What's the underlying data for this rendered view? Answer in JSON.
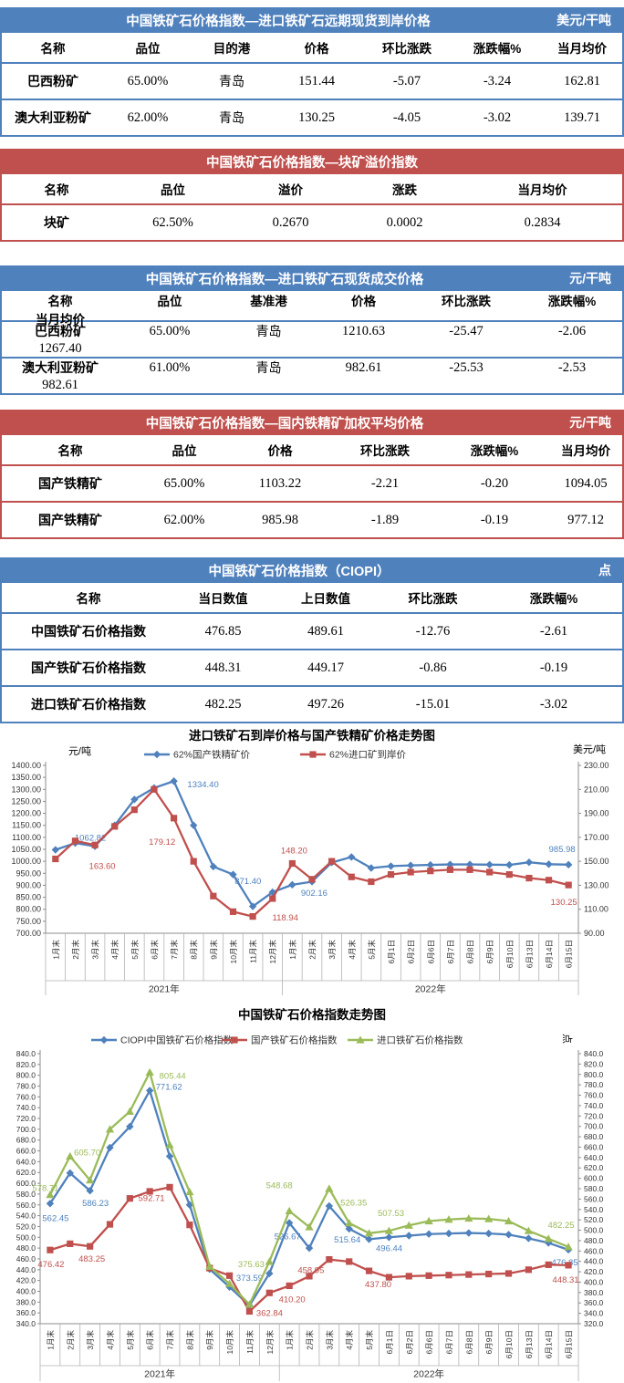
{
  "tables": [
    {
      "theme": "blue",
      "title": "中国铁矿石价格指数—进口铁矿石远期现货到岸价格",
      "unit": "美元/干吨",
      "columns": [
        "名称",
        "品位",
        "目的港",
        "价格",
        "环比涨跌",
        "涨跌幅%",
        "当月均价"
      ],
      "rows": [
        [
          "巴西粉矿",
          "65.00%",
          "青岛",
          "151.44",
          "-5.07",
          "-3.24",
          "162.81"
        ],
        [
          "澳大利亚粉矿",
          "62.00%",
          "青岛",
          "130.25",
          "-4.05",
          "-3.02",
          "139.71"
        ]
      ]
    },
    {
      "theme": "red",
      "title": "中国铁矿石价格指数—块矿溢价指数",
      "unit": "",
      "columns": [
        "名称",
        "品位",
        "溢价",
        "涨跌",
        "当月均价"
      ],
      "rows": [
        [
          "块矿",
          "62.50%",
          "0.2670",
          "0.0002",
          "0.2834"
        ]
      ]
    },
    {
      "theme": "blue",
      "title": "中国铁矿石价格指数—进口铁矿石现货成交价格",
      "unit": "元/干吨",
      "columns": [
        "名称",
        "品位",
        "基准港",
        "价格",
        "环比涨跌",
        "涨跌幅%",
        "当月均价"
      ],
      "rows": [
        [
          "巴西粉矿",
          "65.00%",
          "青岛",
          "1210.63",
          "-25.47",
          "-2.06",
          "1267.40"
        ],
        [
          "澳大利亚粉矿",
          "61.00%",
          "青岛",
          "982.61",
          "-25.53",
          "-2.53",
          "982.61"
        ]
      ]
    },
    {
      "theme": "red",
      "title": "中国铁矿石价格指数—国内铁精矿加权平均价格",
      "unit": "元/干吨",
      "columns": [
        "名称",
        "品位",
        "价格",
        "环比涨跌",
        "涨跌幅%",
        "当月均价"
      ],
      "rows": [
        [
          "国产铁精矿",
          "65.00%",
          "1103.22",
          "-2.21",
          "-0.20",
          "1094.05"
        ],
        [
          "国产铁精矿",
          "62.00%",
          "985.98",
          "-1.89",
          "-0.19",
          "977.12"
        ]
      ]
    },
    {
      "theme": "blue",
      "title": "中国铁矿石价格指数（CIOPI）",
      "unit": "点",
      "columns": [
        "名称",
        "当日数值",
        "上日数值",
        "环比涨跌",
        "涨跌幅%"
      ],
      "rows": [
        [
          "中国铁矿石价格指数",
          "476.85",
          "489.61",
          "-12.76",
          "-2.61"
        ],
        [
          "国产铁矿石价格指数",
          "448.31",
          "449.17",
          "-0.86",
          "-0.19"
        ],
        [
          "进口铁矿石价格指数",
          "482.25",
          "497.26",
          "-15.01",
          "-3.02"
        ]
      ]
    }
  ],
  "chart_data": [
    {
      "type": "line",
      "title": "进口铁矿石到岸价格与国产铁精矿价格走势图",
      "unit_left": "元/吨",
      "unit_right": "美元/吨",
      "unit_right_rotated": "",
      "legend_position": "top",
      "grid": false,
      "categories": [
        "1月末",
        "2月末",
        "3月末",
        "4月末",
        "5月末",
        "6月末",
        "7月末",
        "8月末",
        "9月末",
        "10月末",
        "11月末",
        "12月末",
        "1月末",
        "2月末",
        "3月末",
        "4月末",
        "5月末",
        "6月1日",
        "6月2日",
        "6月6日",
        "6月7日",
        "6月8日",
        "6月9日",
        "6月10日",
        "6月13日",
        "6月14日",
        "6月15日"
      ],
      "category_groups": [
        {
          "label": "2021年",
          "count": 12
        },
        {
          "label": "2022年",
          "count": 15
        }
      ],
      "axis_left": {
        "min": 700,
        "max": 1400,
        "step": 50,
        "decimals": 2
      },
      "axis_right": {
        "min": 90,
        "max": 230,
        "step": 20,
        "decimals": 2
      },
      "series": [
        {
          "name": "62%国产铁精矿价",
          "color": "#4F81BD",
          "marker": "diamond",
          "axis": "left",
          "values": [
            1048,
            1076,
            1062.82,
            1150,
            1258,
            1306,
            1334.4,
            1150,
            978,
            945,
            812,
            871.4,
            902.16,
            915,
            995,
            1018,
            972,
            980,
            983,
            985,
            987,
            987,
            986,
            985,
            996,
            987.87,
            985.98
          ],
          "labels": [
            {
              "i": 2,
              "t": "1062.82",
              "dx": -5,
              "dy": -9
            },
            {
              "i": 6,
              "t": "1334.40",
              "dx": 32,
              "dy": 4
            },
            {
              "i": 11,
              "t": "871.40",
              "dx": -27,
              "dy": -12
            },
            {
              "i": 12,
              "t": "902.16",
              "dx": 24,
              "dy": 9
            },
            {
              "i": 26,
              "t": "985.98",
              "dx": -7,
              "dy": -17
            }
          ]
        },
        {
          "name": "62%进口矿到岸价",
          "color": "#C0504D",
          "marker": "square",
          "axis": "right",
          "values": [
            152,
            167,
            163.6,
            179.12,
            193,
            210,
            186,
            150,
            121,
            108,
            104,
            118.94,
            148.2,
            135,
            150,
            137,
            133,
            139,
            141,
            142,
            143,
            143,
            141,
            139,
            136,
            134.3,
            130.25
          ],
          "labels": [
            {
              "i": 2,
              "t": "163.60",
              "dx": 8,
              "dy": 23
            },
            {
              "i": 3,
              "t": "179.12",
              "dx": 52,
              "dy": 17
            },
            {
              "i": 11,
              "t": "118.94",
              "dx": 14,
              "dy": 21
            },
            {
              "i": 12,
              "t": "148.20",
              "dx": 2,
              "dy": -14
            },
            {
              "i": 26,
              "t": "130.25",
              "dx": -5,
              "dy": 19
            }
          ]
        }
      ]
    },
    {
      "type": "line",
      "title": "中国铁矿石价格指数走势图",
      "unit_left": "",
      "unit_right": "",
      "unit_right_rotated": "点",
      "legend_position": "top",
      "grid": false,
      "categories": [
        "1月末",
        "2月末",
        "3月末",
        "4月末",
        "5月末",
        "6月末",
        "7月末",
        "8月末",
        "9月末",
        "10月末",
        "11月末",
        "12月末",
        "1月末",
        "2月末",
        "3月末",
        "4月末",
        "5月末",
        "6月1日",
        "6月2日",
        "6月6日",
        "6月7日",
        "6月8日",
        "6月9日",
        "6月10日",
        "6月13日",
        "6月14日",
        "6月15日"
      ],
      "category_groups": [
        {
          "label": "2021年",
          "count": 12
        },
        {
          "label": "2022年",
          "count": 15
        }
      ],
      "axis_left": {
        "min": 340,
        "max": 840,
        "step": 20,
        "decimals": 1
      },
      "axis_right": {
        "min": 320,
        "max": 840,
        "step": 20,
        "decimals": 1
      },
      "series": [
        {
          "name": "CIOPI中国铁矿石价格指数",
          "color": "#4F81BD",
          "marker": "diamond",
          "axis": "left",
          "values": [
            562.45,
            619,
            586.23,
            666,
            705,
            771.62,
            650,
            560,
            441,
            408,
            373.59,
            433,
            526.67,
            480,
            558,
            515.64,
            496.44,
            500,
            503,
            506,
            507,
            508,
            507,
            505,
            498,
            489.61,
            476.85
          ],
          "labels": [
            {
              "i": 0,
              "t": "562.45",
              "dx": 6,
              "dy": 16
            },
            {
              "i": 2,
              "t": "586.23",
              "dx": 6,
              "dy": 14
            },
            {
              "i": 5,
              "t": "771.62",
              "dx": 21,
              "dy": -4
            },
            {
              "i": 10,
              "t": "373.59",
              "dx": 0,
              "dy": -30
            },
            {
              "i": 12,
              "t": "526.67",
              "dx": -2,
              "dy": 15
            },
            {
              "i": 15,
              "t": "515.64",
              "dx": -2,
              "dy": 12
            },
            {
              "i": 16,
              "t": "496.44",
              "dx": 22,
              "dy": 10
            },
            {
              "i": 26,
              "t": "476.85",
              "dx": -4,
              "dy": 14
            }
          ]
        },
        {
          "name": "国产铁矿石价格指数",
          "color": "#C0504D",
          "marker": "square",
          "axis": "left",
          "values": [
            476.42,
            488,
            483.25,
            524,
            572,
            585,
            592.71,
            523,
            443,
            429,
            362.84,
            397,
            410.2,
            428,
            458.95,
            455,
            437.8,
            426,
            428,
            429,
            430,
            431,
            432,
            433,
            440,
            449.17,
            448.31
          ],
          "labels": [
            {
              "i": 0,
              "t": "476.42",
              "dx": 1,
              "dy": 16
            },
            {
              "i": 2,
              "t": "483.25",
              "dx": 2,
              "dy": 14
            },
            {
              "i": 6,
              "t": "592.71",
              "dx": -20,
              "dy": 12
            },
            {
              "i": 10,
              "t": "362.84",
              "dx": 22,
              "dy": 2
            },
            {
              "i": 12,
              "t": "410.20",
              "dx": 3,
              "dy": 15
            },
            {
              "i": 14,
              "t": "458.95",
              "dx": -20,
              "dy": 12
            },
            {
              "i": 16,
              "t": "437.80",
              "dx": 10,
              "dy": 15
            },
            {
              "i": 26,
              "t": "448.31",
              "dx": -3,
              "dy": 16
            }
          ]
        },
        {
          "name": "进口铁矿石价格指数",
          "color": "#9BBB59",
          "marker": "triangle",
          "axis": "left",
          "values": [
            578.71,
            650,
            605.7,
            700,
            733,
            805.44,
            671,
            584,
            446,
            414,
            375.63,
            455,
            548.68,
            519,
            590,
            526.35,
            507.53,
            512,
            522,
            530,
            533,
            535,
            534,
            530,
            512,
            497.26,
            482.25
          ],
          "labels": [
            {
              "i": 0,
              "t": "578.71",
              "dx": -5,
              "dy": -7
            },
            {
              "i": 2,
              "t": "605.70",
              "dx": -3,
              "dy": -30
            },
            {
              "i": 5,
              "t": "805.44",
              "dx": 25,
              "dy": 4
            },
            {
              "i": 10,
              "t": "375.63",
              "dx": 2,
              "dy": -44
            },
            {
              "i": 12,
              "t": "548.68",
              "dx": -11,
              "dy": -28
            },
            {
              "i": 15,
              "t": "526.35",
              "dx": 5,
              "dy": -22
            },
            {
              "i": 16,
              "t": "507.53",
              "dx": 24,
              "dy": -22
            },
            {
              "i": 26,
              "t": "482.25",
              "dx": -8,
              "dy": -24
            }
          ]
        }
      ]
    }
  ]
}
